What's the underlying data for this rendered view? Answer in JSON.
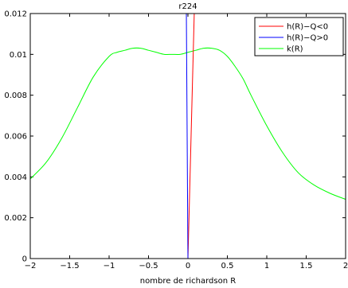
{
  "chart_data": {
    "type": "line",
    "title": "r224",
    "xlabel": "nombre de richardson R",
    "ylabel": "",
    "xlim": [
      -2,
      2
    ],
    "ylim": [
      0,
      0.012
    ],
    "xticks": [
      "-2",
      "-1.5",
      "-1",
      "-0.5",
      "0",
      "0.5",
      "1",
      "1.5",
      "2"
    ],
    "yticks": [
      "0",
      "0.002",
      "0.004",
      "0.006",
      "0.008",
      "0.01",
      "0.012"
    ],
    "grid": false,
    "legend_position": "top-right",
    "series": [
      {
        "name": "h(R)−Q<0",
        "color": "#ff0000",
        "x": [
          0,
          0.08
        ],
        "y": [
          0,
          0.012
        ]
      },
      {
        "name": "h(R)−Q>0",
        "color": "#0000ff",
        "x": [
          0,
          -0.02
        ],
        "y": [
          0,
          0.012
        ]
      },
      {
        "name": "k(R)",
        "color": "#00ff00",
        "x": [
          -2,
          -1.8,
          -1.6,
          -1.4,
          -1.2,
          -1.0,
          -0.9,
          -0.8,
          -0.7,
          -0.6,
          -0.5,
          -0.4,
          -0.3,
          -0.2,
          -0.1,
          0,
          0.1,
          0.2,
          0.3,
          0.4,
          0.5,
          0.6,
          0.7,
          0.8,
          1.0,
          1.2,
          1.4,
          1.6,
          1.8,
          2.0
        ],
        "y": [
          0.0039,
          0.0047,
          0.0059,
          0.0074,
          0.0089,
          0.0099,
          0.0101,
          0.0102,
          0.0103,
          0.0103,
          0.0102,
          0.0101,
          0.01,
          0.01,
          0.01,
          0.0101,
          0.0102,
          0.0103,
          0.0103,
          0.0102,
          0.0099,
          0.0094,
          0.0088,
          0.008,
          0.0065,
          0.0052,
          0.0042,
          0.0036,
          0.0032,
          0.0029
        ]
      }
    ]
  }
}
